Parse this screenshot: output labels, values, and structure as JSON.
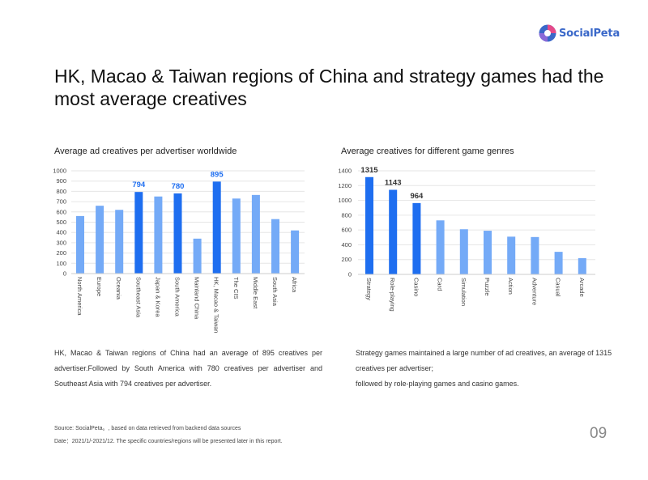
{
  "logo": {
    "text": "SocialPeta"
  },
  "title": "HK, Macao & Taiwan regions of China and strategy games had the most average creatives",
  "chart_data": [
    {
      "type": "bar",
      "title": "Average ad creatives per advertiser worldwide",
      "categories": [
        "North America",
        "Europe",
        "Oceania",
        "Southeast Asia",
        "Japan & Korea",
        "South America",
        "Mainland China",
        "HK, Macao & Taiwan",
        "The CIS",
        "Middle East",
        "South Asia",
        "Africa"
      ],
      "values": [
        560,
        660,
        620,
        794,
        750,
        780,
        340,
        895,
        730,
        765,
        530,
        420
      ],
      "highlight": [
        false,
        false,
        false,
        true,
        false,
        true,
        false,
        true,
        false,
        false,
        false,
        false
      ],
      "value_labels": [
        "",
        "",
        "",
        "794",
        "",
        "780",
        "",
        "895",
        "",
        "",
        "",
        ""
      ],
      "ylim": [
        0,
        1000
      ],
      "yticks": [
        "0",
        "100",
        "200",
        "300",
        "400",
        "500",
        "600",
        "700",
        "800",
        "900",
        "1000"
      ],
      "grid": true,
      "colors": {
        "highlight": "#1e6ef0",
        "normal": "#74aaf7",
        "label": "#1e6ef0"
      }
    },
    {
      "type": "bar",
      "title": "Average creatives for different game genres",
      "categories": [
        "Strategy",
        "Role-playing",
        "Casino",
        "Card",
        "Simulation",
        "Puzzle",
        "Action",
        "Adventure",
        "Casual",
        "Arcade"
      ],
      "values": [
        1315,
        1143,
        964,
        730,
        610,
        590,
        510,
        505,
        305,
        220
      ],
      "highlight": [
        true,
        true,
        true,
        false,
        false,
        false,
        false,
        false,
        false,
        false
      ],
      "value_labels": [
        "1315",
        "1143",
        "964",
        "",
        "",
        "",
        "",
        "",
        "",
        ""
      ],
      "ylim": [
        0,
        1400
      ],
      "yticks": [
        "0",
        "200",
        "400",
        "600",
        "800",
        "1000",
        "1200",
        "1400"
      ],
      "grid": true,
      "colors": {
        "highlight": "#1e6ef0",
        "normal": "#74aaf7",
        "label": "#333333"
      }
    }
  ],
  "desc_left": "HK, Macao & Taiwan regions of China had an average of 895 creatives per advertiser.Followed by South America with 780 creatives per advertiser and Southeast Asia with 794 creatives per advertiser.",
  "desc_right": {
    "line1": "Strategy games maintained a large number of ad creatives, an average of 1315 creatives per advertiser;",
    "line2": "followed by role-playing games and casino games."
  },
  "footnote": {
    "source": "Source: SocialPeta。, based on data retrieved from backend data sources",
    "date": "Date：2021/1/-2021/12. The specific countries/regions will be presented later in this report."
  },
  "page_number": "09"
}
